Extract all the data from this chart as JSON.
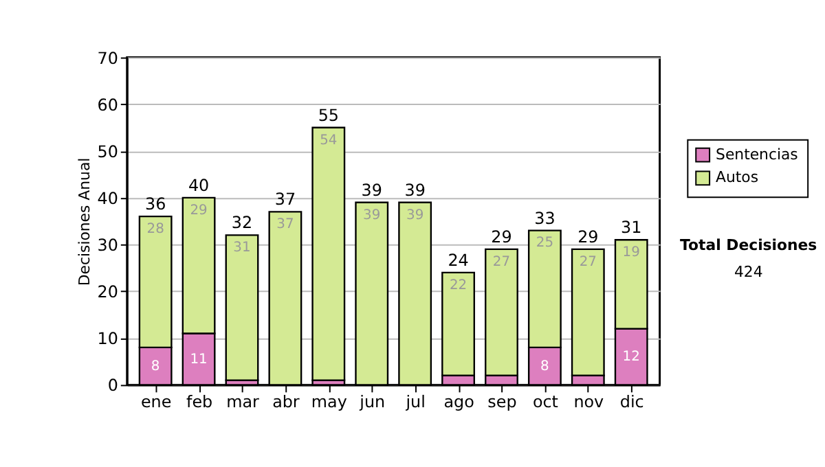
{
  "chart_data": {
    "type": "bar",
    "stacked": true,
    "ylabel": "Decisiones Anual",
    "categories": [
      "ene",
      "feb",
      "mar",
      "abr",
      "may",
      "jun",
      "jul",
      "ago",
      "sep",
      "oct",
      "nov",
      "dic"
    ],
    "series": [
      {
        "name": "Sentencias",
        "color": "#dd7fbf",
        "values": [
          8,
          11,
          1,
          0,
          1,
          0,
          0,
          2,
          2,
          8,
          2,
          12
        ],
        "value_labels": [
          "8",
          "11",
          null,
          null,
          null,
          null,
          null,
          null,
          null,
          "8",
          null,
          "12"
        ]
      },
      {
        "name": "Autos",
        "color": "#d4ea94",
        "values": [
          28,
          29,
          31,
          37,
          54,
          39,
          39,
          22,
          27,
          25,
          27,
          19
        ],
        "value_labels": [
          "28",
          "29",
          "31",
          "37",
          "54",
          "39",
          "39",
          "22",
          "27",
          "25",
          "27",
          "19"
        ]
      }
    ],
    "totals": [
      "36",
      "40",
      "32",
      "37",
      "55",
      "39",
      "39",
      "24",
      "29",
      "33",
      "29",
      "31"
    ],
    "ylim": [
      0,
      70
    ],
    "yticks": [
      0,
      10,
      20,
      30,
      40,
      50,
      60,
      70
    ],
    "grid": "y",
    "legend": "right",
    "annotations": [
      "Total Decisiones",
      "424"
    ]
  }
}
